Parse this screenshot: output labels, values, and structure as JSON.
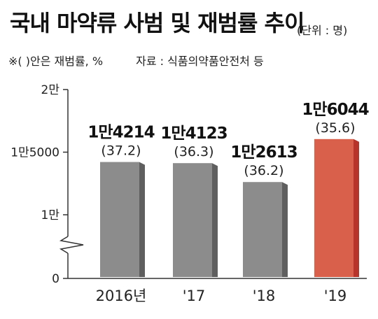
{
  "header": {
    "title": "국내 마약류 사범 및 재범률 추이",
    "unit": "(단위 : 명)",
    "note": "※(  )안은 재범률, %",
    "source": "자료 : 식품의약품안전처 등"
  },
  "colors": {
    "bar": "#8c8c8c",
    "bar_shade": "#5f5f5f",
    "highlight": "#d9604b",
    "highlight_shade": "#b8342a"
  },
  "chart_data": {
    "type": "bar",
    "title": "국내 마약류 사범 및 재범률 추이",
    "categories": [
      "2016년",
      "'17",
      "'18",
      "'19"
    ],
    "values": [
      14214,
      14123,
      12613,
      16044
    ],
    "value_labels": [
      "1만4214",
      "1만4123",
      "1만2613",
      "1만6044"
    ],
    "rates": [
      "(37.2)",
      "(36.3)",
      "(36.2)",
      "(35.6)"
    ],
    "yticks": [
      {
        "value": 0,
        "label": "0"
      },
      {
        "value": 10000,
        "label": "1만"
      },
      {
        "value": 15000,
        "label": "1만5000"
      },
      {
        "value": 20000,
        "label": "2만"
      }
    ],
    "ylim": [
      0,
      20000
    ],
    "axis_break": true,
    "highlight_index": 3,
    "grid": false
  }
}
